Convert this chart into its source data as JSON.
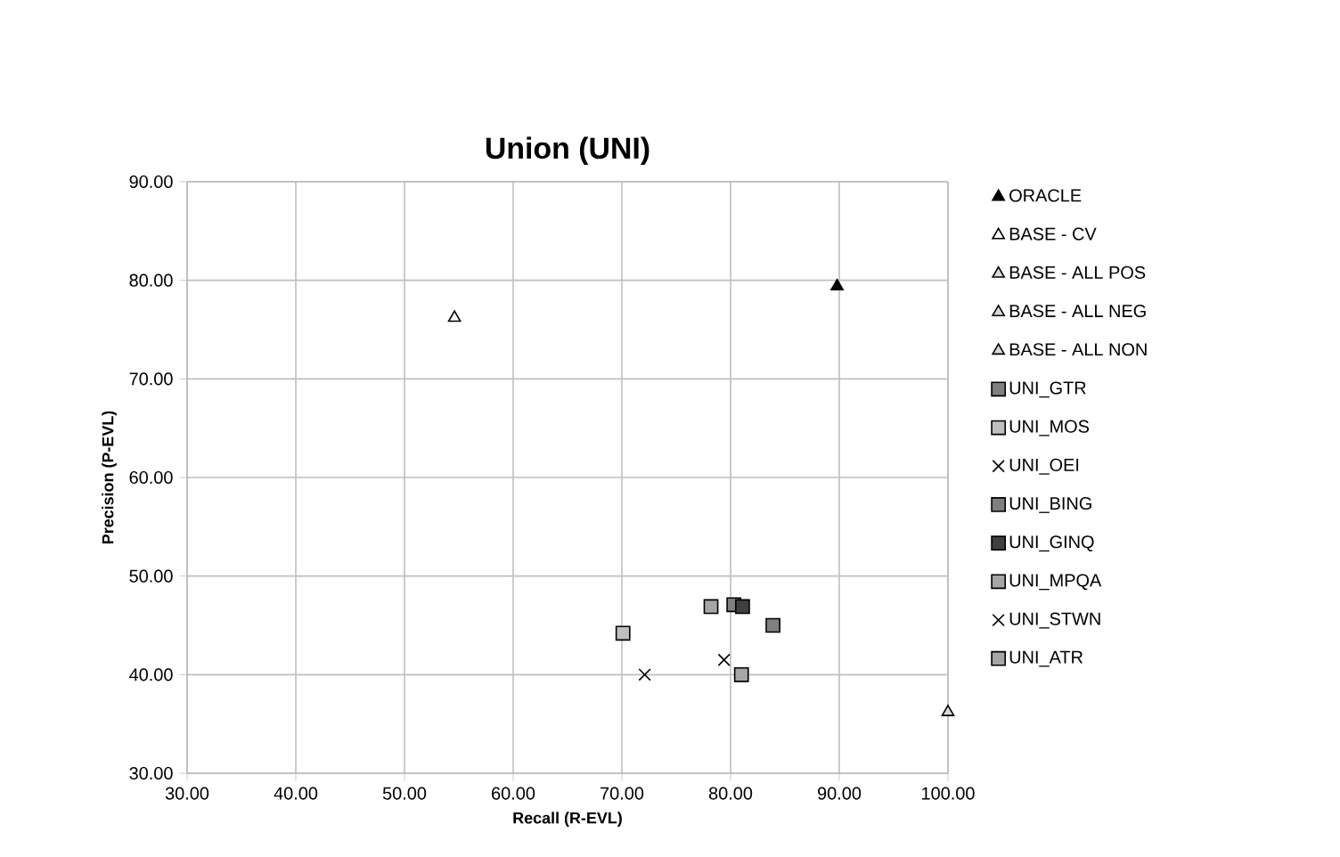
{
  "chart_data": {
    "type": "scatter",
    "title": "Union (UNI)",
    "xlabel": "Recall (R-EVL)",
    "ylabel": "Precision (P-EVL)",
    "xlim": [
      30,
      100
    ],
    "ylim": [
      30,
      90
    ],
    "xticks": [
      {
        "value": 30,
        "label": "30.00"
      },
      {
        "value": 40,
        "label": "40.00"
      },
      {
        "value": 50,
        "label": "50.00"
      },
      {
        "value": 60,
        "label": "60.00"
      },
      {
        "value": 70,
        "label": "70.00"
      },
      {
        "value": 80,
        "label": "80.00"
      },
      {
        "value": 90,
        "label": "90.00"
      },
      {
        "value": 100,
        "label": "100.00"
      }
    ],
    "yticks": [
      {
        "value": 30,
        "label": "30.00"
      },
      {
        "value": 40,
        "label": "40.00"
      },
      {
        "value": 50,
        "label": "50.00"
      },
      {
        "value": 60,
        "label": "60.00"
      },
      {
        "value": 70,
        "label": "70.00"
      },
      {
        "value": 80,
        "label": "80.00"
      },
      {
        "value": 90,
        "label": "90.00"
      }
    ],
    "grid": true,
    "legend": "right",
    "series": [
      {
        "name": "ORACLE",
        "color": "#000000",
        "marker": "triangle",
        "x": [
          89.8
        ],
        "values": [
          79.4
        ]
      },
      {
        "name": "BASE - CV",
        "color": "#ffffff",
        "marker": "triangle",
        "x": [
          54.6
        ],
        "values": [
          76.2
        ]
      },
      {
        "name": "BASE - ALL POS",
        "color": "#d9d9d9",
        "marker": "triangle",
        "x": [
          100
        ],
        "values": [
          36.2
        ]
      },
      {
        "name": "BASE - ALL NEG",
        "color": "#d9d9d9",
        "marker": "triangle",
        "x": [
          null
        ],
        "values": [
          null
        ]
      },
      {
        "name": "BASE - ALL NON",
        "color": "#d9d9d9",
        "marker": "triangle",
        "x": [
          null
        ],
        "values": [
          null
        ]
      },
      {
        "name": "UNI_GTR",
        "color": "#808080",
        "marker": "square",
        "x": [
          83.9
        ],
        "values": [
          45.0
        ]
      },
      {
        "name": "UNI_MOS",
        "color": "#bfbfbf",
        "marker": "square",
        "x": [
          70.1
        ],
        "values": [
          44.2
        ]
      },
      {
        "name": "UNI_OEI",
        "color": "#000000",
        "marker": "cross",
        "x": [
          72.1
        ],
        "values": [
          40.0
        ]
      },
      {
        "name": "UNI_BING",
        "color": "#7f7f7f",
        "marker": "square",
        "x": [
          80.3
        ],
        "values": [
          47.1
        ]
      },
      {
        "name": "UNI_GINQ",
        "color": "#404040",
        "marker": "square",
        "x": [
          81.1
        ],
        "values": [
          46.9
        ]
      },
      {
        "name": "UNI_MPQA",
        "color": "#a6a6a6",
        "marker": "square",
        "x": [
          78.2
        ],
        "values": [
          46.9
        ]
      },
      {
        "name": "UNI_STWN",
        "color": "#000000",
        "marker": "cross",
        "x": [
          79.4
        ],
        "values": [
          41.5
        ]
      },
      {
        "name": "UNI_ATR",
        "color": "#a6a6a6",
        "marker": "square",
        "x": [
          81.0
        ],
        "values": [
          40.0
        ]
      }
    ]
  }
}
